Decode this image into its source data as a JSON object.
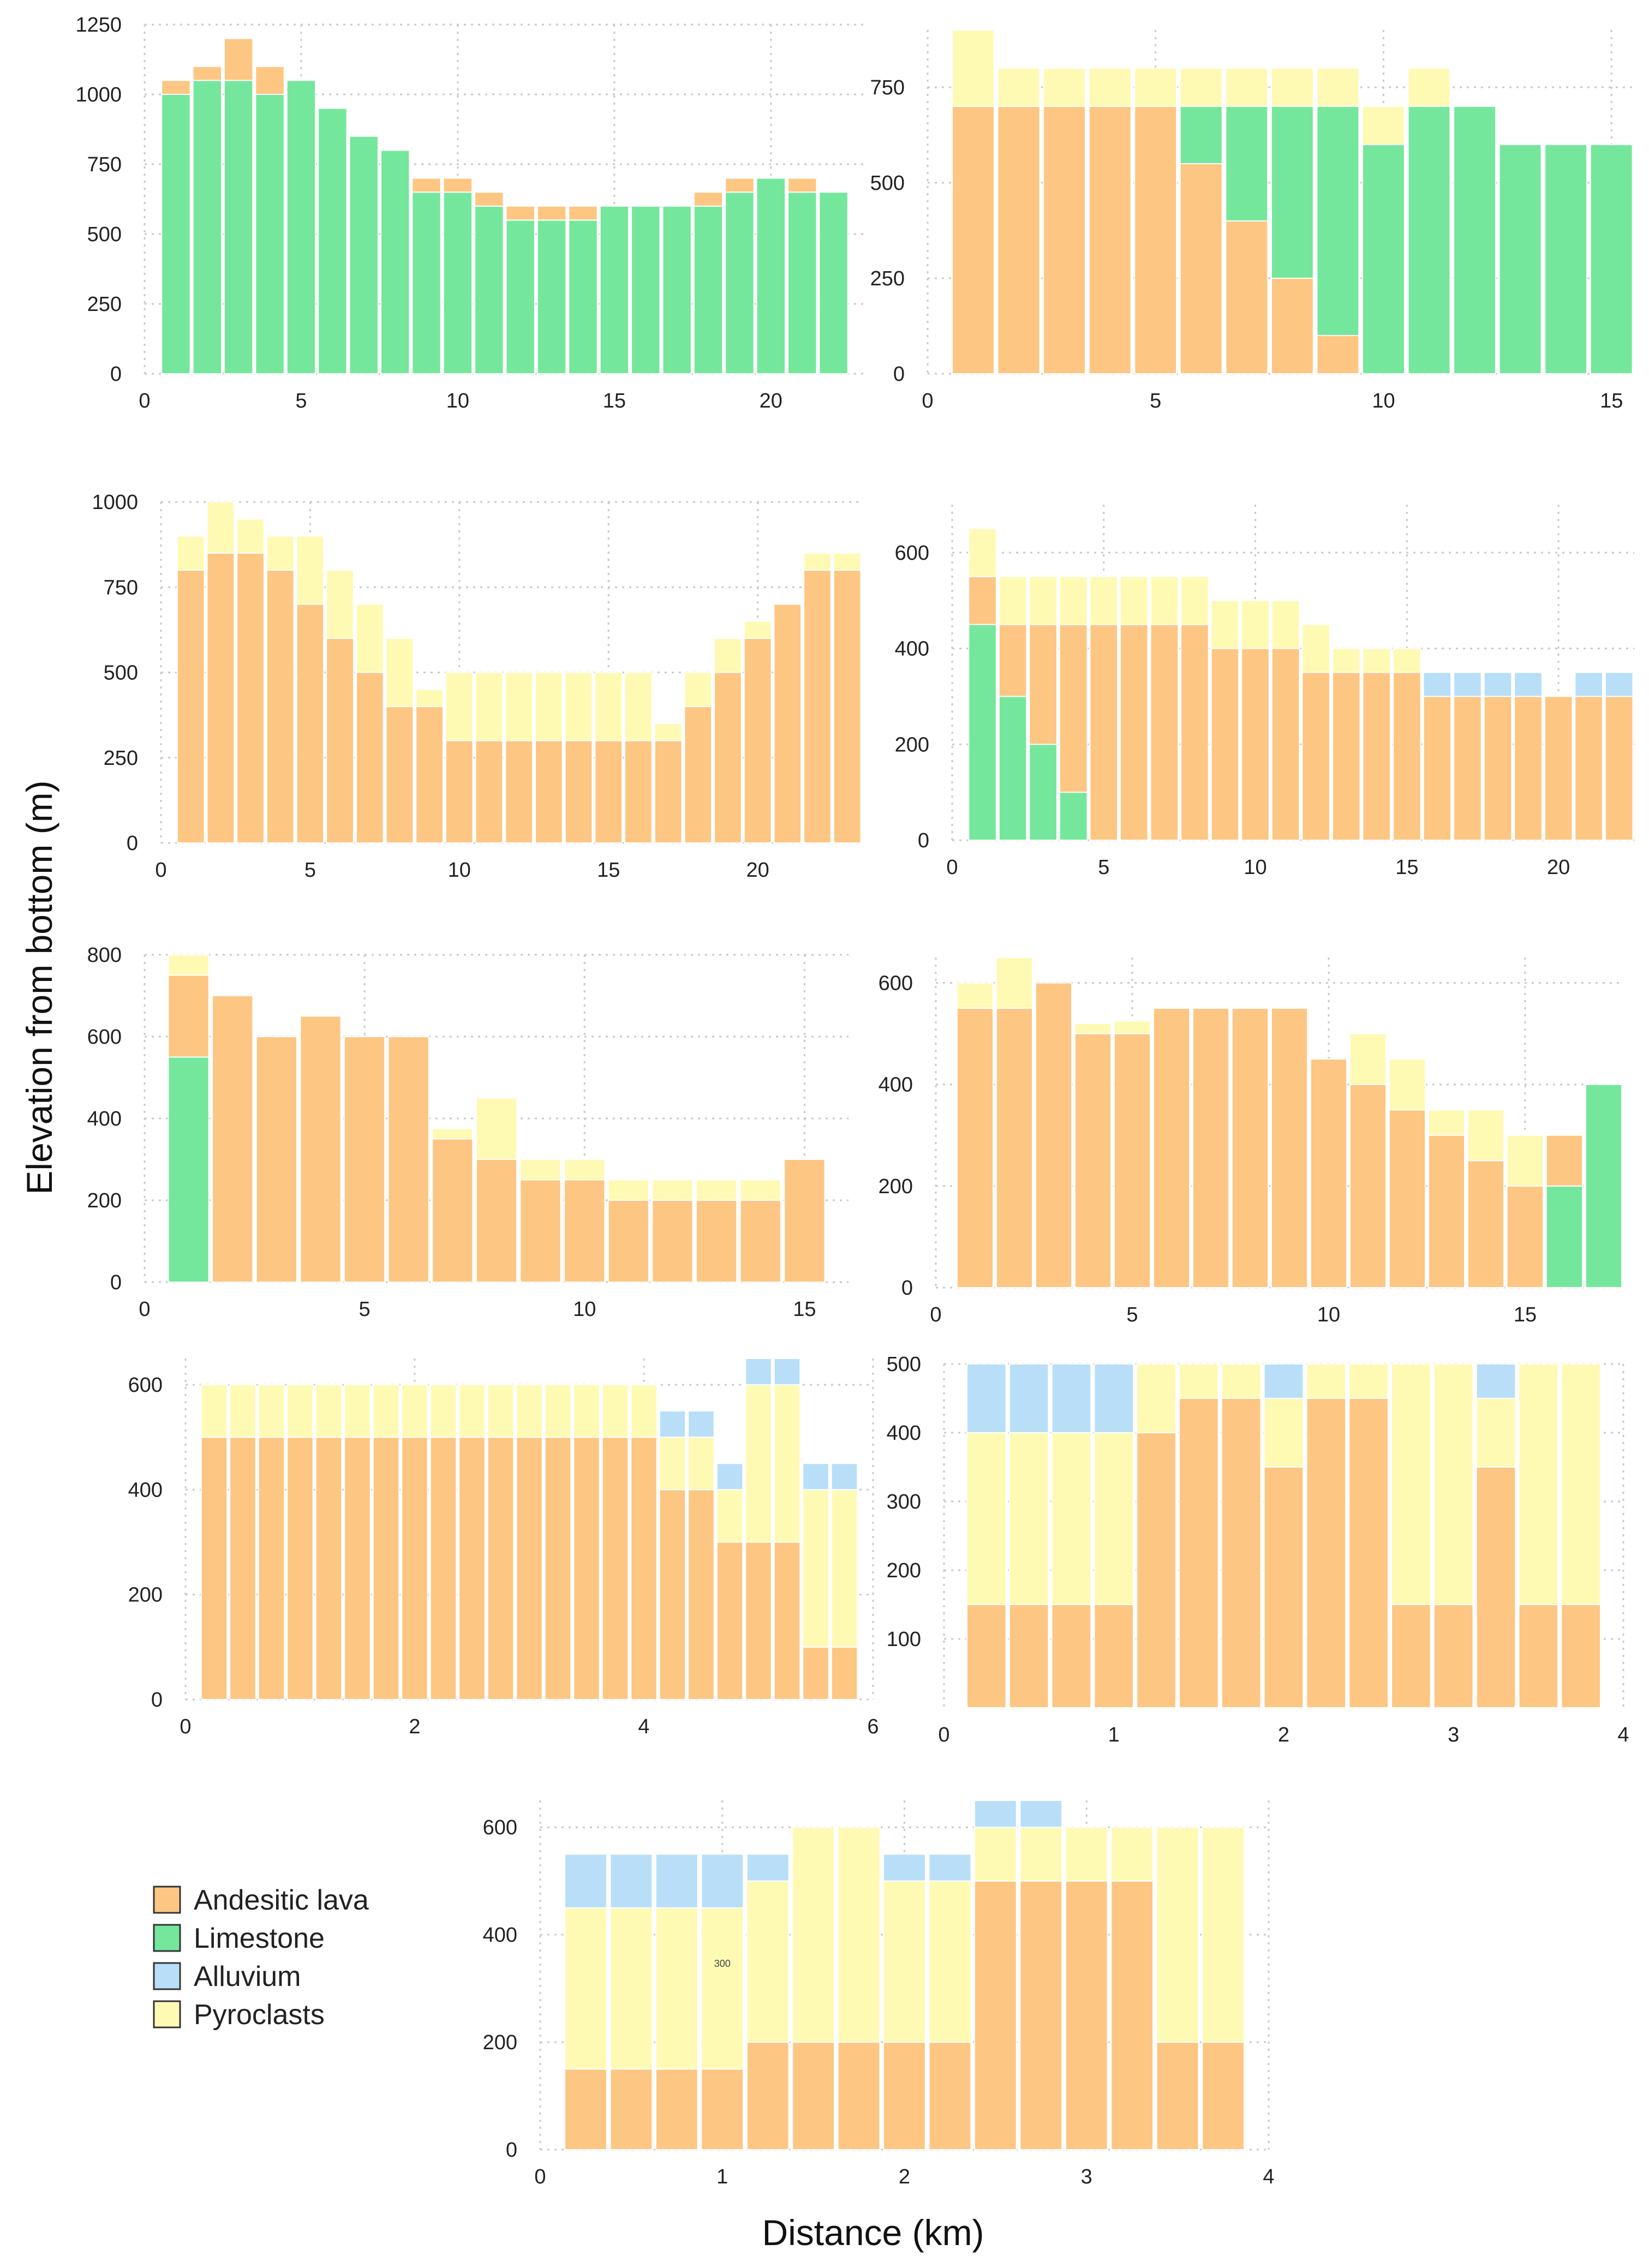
{
  "figure": {
    "ylabel": "Elevation from bottom (m)",
    "xlabel": "Distance (km)"
  },
  "legend": [
    {
      "label": "Andesitic lava",
      "color": "#FDC682"
    },
    {
      "label": "Limestone",
      "color": "#74E79C"
    },
    {
      "label": "Alluvium",
      "color": "#B8DFF7"
    },
    {
      "label": "Pyroclasts",
      "color": "#FEFAB4"
    }
  ],
  "annotations": [
    {
      "panel": 8,
      "text": "300",
      "x": 1.0,
      "y": 340
    }
  ],
  "chart_data": [
    {
      "type": "bar",
      "stacked": true,
      "panel": 0,
      "xlim": [
        0,
        23
      ],
      "ylim": [
        0,
        1250
      ],
      "xticks": [
        0,
        5,
        10,
        15,
        20
      ],
      "yticks": [
        0,
        250,
        500,
        750,
        1000,
        1250
      ],
      "x": [
        1,
        2,
        3,
        4,
        5,
        6,
        7,
        8,
        9,
        10,
        11,
        12,
        13,
        14,
        15,
        16,
        17,
        18,
        19,
        20,
        21,
        22
      ],
      "series": [
        {
          "name": "Limestone",
          "color": "#74E79C",
          "values": [
            1000,
            1050,
            1050,
            1000,
            1050,
            950,
            850,
            800,
            650,
            650,
            600,
            550,
            550,
            550,
            600,
            600,
            600,
            600,
            650,
            700,
            650,
            650
          ]
        },
        {
          "name": "Andesitic lava",
          "color": "#FDC682",
          "values": [
            50,
            50,
            150,
            100,
            0,
            0,
            0,
            0,
            50,
            50,
            50,
            50,
            50,
            50,
            0,
            0,
            0,
            50,
            50,
            0,
            50,
            0
          ]
        }
      ]
    },
    {
      "type": "bar",
      "stacked": true,
      "panel": 1,
      "xlim": [
        0,
        15.5
      ],
      "ylim": [
        0,
        900
      ],
      "xticks": [
        0,
        5,
        10,
        15
      ],
      "yticks": [
        0,
        250,
        500,
        750
      ],
      "x": [
        1,
        2,
        3,
        4,
        5,
        6,
        7,
        8,
        9,
        10,
        11,
        12,
        13,
        14,
        15
      ],
      "series": [
        {
          "name": "Andesitic lava",
          "color": "#FDC682",
          "values": [
            700,
            700,
            700,
            700,
            700,
            550,
            400,
            250,
            100,
            0,
            0,
            0,
            0,
            0,
            0
          ]
        },
        {
          "name": "Limestone",
          "color": "#74E79C",
          "values": [
            0,
            0,
            0,
            0,
            0,
            150,
            300,
            450,
            600,
            600,
            700,
            700,
            600,
            600,
            600
          ]
        },
        {
          "name": "Pyroclasts",
          "color": "#FEFAB4",
          "values": [
            200,
            100,
            100,
            100,
            100,
            100,
            100,
            100,
            100,
            100,
            100,
            0,
            0,
            0,
            0
          ]
        }
      ]
    },
    {
      "type": "bar",
      "stacked": true,
      "panel": 2,
      "xlim": [
        0,
        23.5
      ],
      "ylim": [
        0,
        1000
      ],
      "xticks": [
        0,
        5,
        10,
        15,
        20
      ],
      "yticks": [
        0,
        250,
        500,
        750,
        1000
      ],
      "x": [
        1,
        2,
        3,
        4,
        5,
        6,
        7,
        8,
        9,
        10,
        11,
        12,
        13,
        14,
        15,
        16,
        17,
        18,
        19,
        20,
        21,
        22,
        23
      ],
      "series": [
        {
          "name": "Andesitic lava",
          "color": "#FDC682",
          "values": [
            800,
            850,
            850,
            800,
            700,
            600,
            500,
            400,
            400,
            300,
            300,
            300,
            300,
            300,
            300,
            300,
            300,
            400,
            500,
            600,
            700,
            800,
            800
          ]
        },
        {
          "name": "Pyroclasts",
          "color": "#FEFAB4",
          "values": [
            100,
            150,
            100,
            100,
            200,
            200,
            200,
            200,
            50,
            200,
            200,
            200,
            200,
            200,
            200,
            200,
            50,
            100,
            100,
            50,
            0,
            50,
            50
          ]
        }
      ]
    },
    {
      "type": "bar",
      "stacked": true,
      "panel": 3,
      "xlim": [
        0,
        22.5
      ],
      "ylim": [
        0,
        700
      ],
      "xticks": [
        0,
        5,
        10,
        15,
        20
      ],
      "yticks": [
        0,
        200,
        400,
        600
      ],
      "x": [
        1,
        2,
        3,
        4,
        5,
        6,
        7,
        8,
        9,
        10,
        11,
        12,
        13,
        14,
        15,
        16,
        17,
        18,
        19,
        20,
        21,
        22
      ],
      "series": [
        {
          "name": "Limestone",
          "color": "#74E79C",
          "values": [
            450,
            300,
            200,
            100,
            0,
            0,
            0,
            0,
            0,
            0,
            0,
            0,
            0,
            0,
            0,
            0,
            0,
            0,
            0,
            0,
            0,
            0
          ]
        },
        {
          "name": "Andesitic lava",
          "color": "#FDC682",
          "values": [
            100,
            150,
            250,
            350,
            450,
            450,
            450,
            450,
            400,
            400,
            400,
            350,
            350,
            350,
            350,
            300,
            300,
            300,
            300,
            300,
            300,
            300
          ]
        },
        {
          "name": "Alluvium",
          "color": "#B8DFF7",
          "values": [
            0,
            0,
            0,
            0,
            0,
            0,
            0,
            0,
            0,
            0,
            0,
            0,
            0,
            0,
            0,
            50,
            50,
            50,
            50,
            0,
            50,
            50
          ]
        },
        {
          "name": "Pyroclasts",
          "color": "#FEFAB4",
          "values": [
            100,
            100,
            100,
            100,
            100,
            100,
            100,
            100,
            100,
            100,
            100,
            100,
            50,
            50,
            50,
            0,
            0,
            0,
            0,
            0,
            0,
            0
          ]
        }
      ]
    },
    {
      "type": "bar",
      "stacked": true,
      "panel": 4,
      "xlim": [
        0,
        16
      ],
      "ylim": [
        0,
        800
      ],
      "xticks": [
        0,
        5,
        10,
        15
      ],
      "yticks": [
        0,
        200,
        400,
        600,
        800
      ],
      "x": [
        1,
        2,
        3,
        4,
        5,
        6,
        7,
        8,
        9,
        10,
        11,
        12,
        13,
        14,
        15
      ],
      "series": [
        {
          "name": "Limestone",
          "color": "#74E79C",
          "values": [
            550,
            0,
            0,
            0,
            0,
            0,
            0,
            0,
            0,
            0,
            0,
            0,
            0,
            0,
            0
          ]
        },
        {
          "name": "Andesitic lava",
          "color": "#FDC682",
          "values": [
            200,
            700,
            600,
            650,
            600,
            600,
            350,
            300,
            250,
            250,
            200,
            200,
            200,
            200,
            300
          ]
        },
        {
          "name": "Pyroclasts",
          "color": "#FEFAB4",
          "values": [
            50,
            0,
            0,
            0,
            0,
            0,
            25,
            150,
            50,
            50,
            50,
            50,
            50,
            50,
            0
          ]
        }
      ]
    },
    {
      "type": "bar",
      "stacked": true,
      "panel": 5,
      "xlim": [
        0,
        17.5
      ],
      "ylim": [
        0,
        650
      ],
      "xticks": [
        0,
        5,
        10,
        15
      ],
      "yticks": [
        0,
        200,
        400,
        600
      ],
      "x": [
        1,
        2,
        3,
        4,
        5,
        6,
        7,
        8,
        9,
        10,
        11,
        12,
        13,
        14,
        15,
        16,
        17
      ],
      "series": [
        {
          "name": "Limestone",
          "color": "#74E79C",
          "values": [
            0,
            0,
            0,
            0,
            0,
            0,
            0,
            0,
            0,
            0,
            0,
            0,
            0,
            0,
            0,
            200,
            400
          ]
        },
        {
          "name": "Andesitic lava",
          "color": "#FDC682",
          "values": [
            550,
            550,
            600,
            500,
            500,
            550,
            550,
            550,
            550,
            450,
            400,
            350,
            300,
            250,
            200,
            100,
            0
          ]
        },
        {
          "name": "Pyroclasts",
          "color": "#FEFAB4",
          "values": [
            50,
            100,
            0,
            20,
            25,
            0,
            0,
            0,
            0,
            0,
            100,
            100,
            50,
            100,
            100,
            0,
            0
          ]
        }
      ]
    },
    {
      "type": "bar",
      "stacked": true,
      "panel": 6,
      "xlim": [
        0,
        6
      ],
      "ylim": [
        0,
        650
      ],
      "xticks": [
        0,
        2,
        4,
        6
      ],
      "yticks": [
        0,
        200,
        400,
        600
      ],
      "x": [
        0.25,
        0.5,
        0.75,
        1.0,
        1.25,
        1.5,
        1.75,
        2.0,
        2.25,
        2.5,
        2.75,
        3.0,
        3.25,
        3.5,
        3.75,
        4.0,
        4.25,
        4.5,
        4.75,
        5.0,
        5.25,
        5.5,
        5.75
      ],
      "series": [
        {
          "name": "Andesitic lava",
          "color": "#FDC682",
          "values": [
            500,
            500,
            500,
            500,
            500,
            500,
            500,
            500,
            500,
            500,
            500,
            500,
            500,
            500,
            500,
            500,
            400,
            400,
            300,
            300,
            300,
            100,
            100
          ]
        },
        {
          "name": "Pyroclasts",
          "color": "#FEFAB4",
          "values": [
            100,
            100,
            100,
            100,
            100,
            100,
            100,
            100,
            100,
            100,
            100,
            100,
            100,
            100,
            100,
            100,
            100,
            100,
            100,
            300,
            300,
            300,
            300
          ]
        },
        {
          "name": "Alluvium",
          "color": "#B8DFF7",
          "values": [
            0,
            0,
            0,
            0,
            0,
            0,
            0,
            0,
            0,
            0,
            0,
            0,
            0,
            0,
            0,
            0,
            50,
            50,
            50,
            50,
            50,
            50,
            50
          ]
        }
      ]
    },
    {
      "type": "bar",
      "stacked": true,
      "panel": 7,
      "xlim": [
        0,
        4
      ],
      "ylim": [
        0,
        500
      ],
      "xticks": [
        0,
        1,
        2,
        3,
        4
      ],
      "yticks": [
        100,
        200,
        300,
        400,
        500
      ],
      "x": [
        0.25,
        0.5,
        0.75,
        1.0,
        1.25,
        1.5,
        1.75,
        2.0,
        2.25,
        2.5,
        2.75,
        3.0,
        3.25,
        3.5,
        3.75
      ],
      "series": [
        {
          "name": "Andesitic lava",
          "color": "#FDC682",
          "values": [
            150,
            150,
            150,
            150,
            400,
            450,
            450,
            350,
            450,
            450,
            150,
            150,
            350,
            150,
            150
          ]
        },
        {
          "name": "Pyroclasts",
          "color": "#FEFAB4",
          "values": [
            250,
            250,
            250,
            250,
            100,
            50,
            50,
            100,
            50,
            50,
            350,
            350,
            100,
            350,
            350
          ]
        },
        {
          "name": "Alluvium",
          "color": "#B8DFF7",
          "values": [
            100,
            100,
            100,
            100,
            0,
            0,
            0,
            50,
            0,
            0,
            0,
            0,
            50,
            0,
            0
          ]
        }
      ]
    },
    {
      "type": "bar",
      "stacked": true,
      "panel": 8,
      "xlim": [
        0,
        4
      ],
      "ylim": [
        0,
        650
      ],
      "xticks": [
        0,
        1,
        2,
        3,
        4
      ],
      "yticks": [
        0,
        200,
        400,
        600
      ],
      "x": [
        0.25,
        0.5,
        0.75,
        1.0,
        1.25,
        1.5,
        1.75,
        2.0,
        2.25,
        2.5,
        2.75,
        3.0,
        3.25,
        3.5,
        3.75
      ],
      "series": [
        {
          "name": "Andesitic lava",
          "color": "#FDC682",
          "values": [
            150,
            150,
            150,
            150,
            200,
            200,
            200,
            200,
            200,
            500,
            500,
            500,
            500,
            200,
            200
          ]
        },
        {
          "name": "Pyroclasts",
          "color": "#FEFAB4",
          "values": [
            300,
            300,
            300,
            300,
            300,
            400,
            400,
            300,
            300,
            100,
            100,
            100,
            100,
            400,
            400
          ]
        },
        {
          "name": "Alluvium",
          "color": "#B8DFF7",
          "values": [
            100,
            100,
            100,
            100,
            50,
            0,
            0,
            50,
            50,
            50,
            50,
            0,
            0,
            0,
            0
          ]
        }
      ]
    }
  ]
}
